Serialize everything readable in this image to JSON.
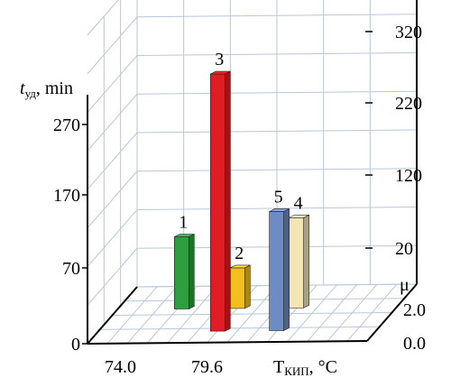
{
  "chart_data": {
    "type": "bar",
    "bars": [
      {
        "label": "1",
        "t": 74.0,
        "mu": 2.0,
        "height": 80,
        "color": "#2e9e3e"
      },
      {
        "label": "2",
        "t": 79.6,
        "mu": 2.0,
        "height": 45,
        "color": "#f2c01e"
      },
      {
        "label": "3",
        "t": 79.6,
        "mu": 0.0,
        "height": 285,
        "color": "#e01c24"
      },
      {
        "label": "4",
        "t": 85.5,
        "mu": 2.0,
        "height": 100,
        "color": "#f4e6b2"
      },
      {
        "label": "5",
        "t": 85.5,
        "mu": 0.0,
        "height": 132,
        "color": "#6e8cc4"
      }
    ],
    "left_axis": {
      "label_main": "t",
      "label_sub": "уд",
      "label_unit": ", min",
      "ticks": [
        0,
        70,
        170,
        270
      ]
    },
    "right_axis": {
      "ticks": [
        20,
        120,
        220,
        320
      ]
    },
    "x_axis": {
      "label_main": "T",
      "label_sub": "КИП",
      "label_unit": ", °C",
      "ticks": [
        "74.0",
        "79.6"
      ]
    },
    "depth_axis": {
      "label": "μ",
      "ticks": [
        "0.0",
        "2.0"
      ]
    },
    "grid": true,
    "colors": {
      "grid": "#b9c7d9",
      "axis": "#000000"
    }
  }
}
